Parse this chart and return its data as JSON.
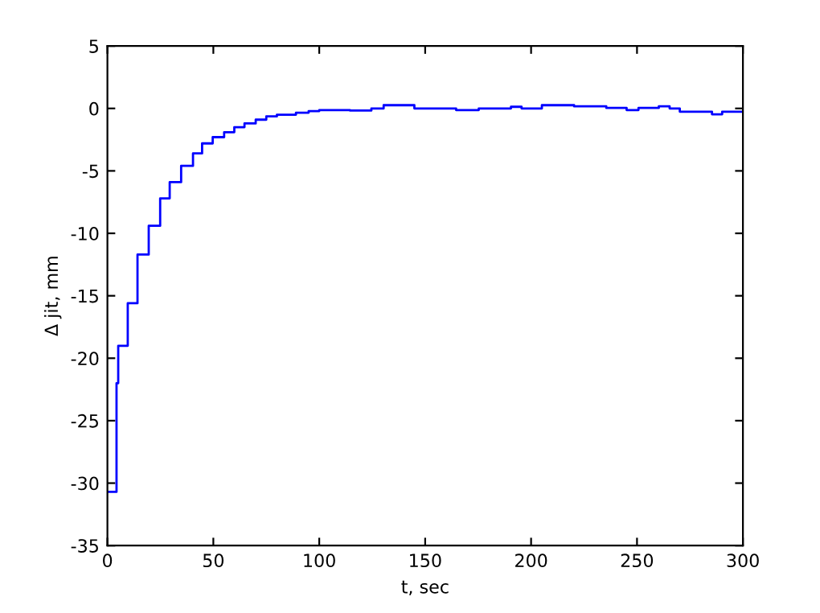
{
  "chart_data": {
    "type": "step",
    "xlabel": "t, sec",
    "ylabel": "Δ jit, mm",
    "x": [
      0,
      4.3,
      5.1,
      9.6,
      14.2,
      19.5,
      24.9,
      29.4,
      34.8,
      40.4,
      44.7,
      49.7,
      55.1,
      59.9,
      64.7,
      70,
      75,
      80,
      89,
      95,
      100,
      114.5,
      124.6,
      130.4,
      144.9,
      164.6,
      175.3,
      190.5,
      195.5,
      205.1,
      220.3,
      235.5,
      245.1,
      250.7,
      260.3,
      265.4,
      270.2,
      285.4,
      290.2,
      300
    ],
    "series": [
      {
        "color": "#0000ff",
        "values": [
          -30.7,
          -22.0,
          -19.0,
          -15.6,
          -11.7,
          -9.4,
          -7.2,
          -5.9,
          -4.6,
          -3.6,
          -2.8,
          -2.3,
          -1.9,
          -1.5,
          -1.2,
          -0.9,
          -0.64,
          -0.5,
          -0.34,
          -0.21,
          -0.13,
          -0.17,
          0,
          0.26,
          0,
          -0.13,
          0,
          0.13,
          0,
          0.26,
          0.17,
          0.04,
          -0.13,
          0.04,
          0.17,
          0,
          -0.26,
          -0.47,
          -0.26,
          -0.26
        ]
      }
    ],
    "xlim": [
      0,
      300
    ],
    "ylim": [
      -35,
      5
    ],
    "xticks": [
      0,
      50,
      100,
      150,
      200,
      250,
      300
    ],
    "yticks": [
      -35,
      -30,
      -25,
      -20,
      -15,
      -10,
      -5,
      0,
      5
    ],
    "grid": false
  }
}
